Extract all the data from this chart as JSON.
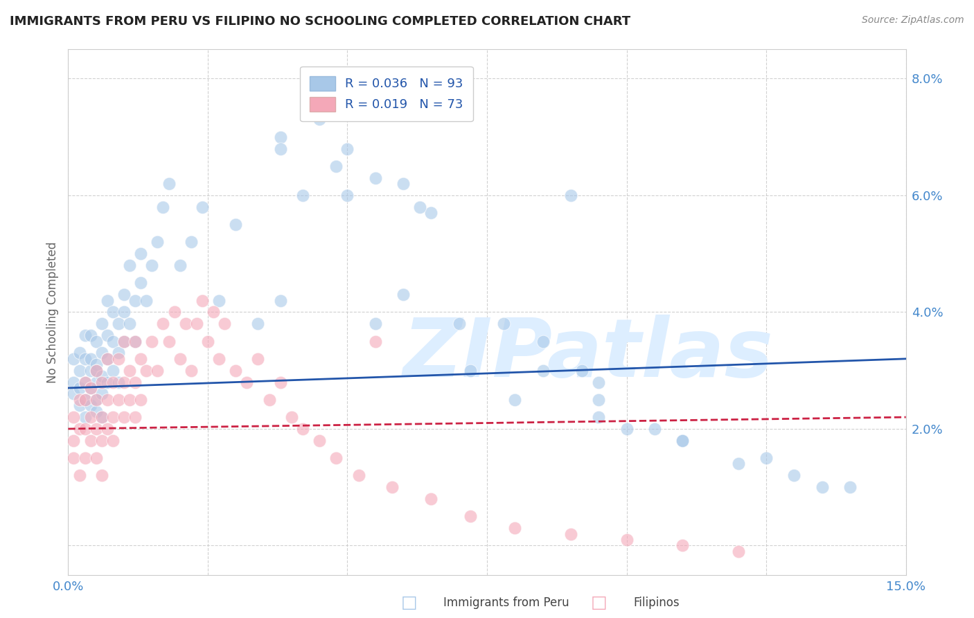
{
  "title": "IMMIGRANTS FROM PERU VS FILIPINO NO SCHOOLING COMPLETED CORRELATION CHART",
  "source_text": "Source: ZipAtlas.com",
  "ylabel": "No Schooling Completed",
  "xlim": [
    0.0,
    0.15
  ],
  "ylim": [
    -0.005,
    0.085
  ],
  "blue_color": "#a8c8e8",
  "pink_color": "#f4a8b8",
  "blue_line_color": "#2255aa",
  "pink_line_color": "#cc2244",
  "watermark": "ZIPatlas",
  "watermark_color": "#ddeeff",
  "background_color": "#ffffff",
  "grid_color": "#cccccc",
  "title_color": "#222222",
  "blue_label": "R = 0.036   N = 93",
  "pink_label": "R = 0.019   N = 73",
  "blue_trend_y0": 0.027,
  "blue_trend_y1": 0.032,
  "pink_trend_y0": 0.02,
  "pink_trend_y1": 0.022,
  "blue_scatter_x": [
    0.001,
    0.001,
    0.001,
    0.002,
    0.002,
    0.002,
    0.002,
    0.003,
    0.003,
    0.003,
    0.003,
    0.003,
    0.004,
    0.004,
    0.004,
    0.004,
    0.004,
    0.005,
    0.005,
    0.005,
    0.005,
    0.005,
    0.005,
    0.006,
    0.006,
    0.006,
    0.006,
    0.006,
    0.007,
    0.007,
    0.007,
    0.007,
    0.008,
    0.008,
    0.008,
    0.009,
    0.009,
    0.009,
    0.01,
    0.01,
    0.01,
    0.011,
    0.011,
    0.012,
    0.012,
    0.013,
    0.013,
    0.014,
    0.015,
    0.016,
    0.017,
    0.018,
    0.02,
    0.022,
    0.024,
    0.027,
    0.03,
    0.034,
    0.038,
    0.042,
    0.048,
    0.055,
    0.06,
    0.065,
    0.072,
    0.08,
    0.09,
    0.095,
    0.1,
    0.11,
    0.125,
    0.13,
    0.14,
    0.038,
    0.045,
    0.05,
    0.055,
    0.063,
    0.07,
    0.078,
    0.085,
    0.092,
    0.095,
    0.105,
    0.038,
    0.05,
    0.06,
    0.07,
    0.085,
    0.095,
    0.11,
    0.12,
    0.135
  ],
  "blue_scatter_y": [
    0.028,
    0.032,
    0.026,
    0.03,
    0.027,
    0.024,
    0.033,
    0.028,
    0.025,
    0.032,
    0.036,
    0.022,
    0.03,
    0.027,
    0.024,
    0.032,
    0.036,
    0.028,
    0.031,
    0.025,
    0.03,
    0.035,
    0.023,
    0.029,
    0.033,
    0.026,
    0.038,
    0.022,
    0.032,
    0.036,
    0.028,
    0.042,
    0.035,
    0.03,
    0.04,
    0.033,
    0.038,
    0.028,
    0.04,
    0.035,
    0.043,
    0.038,
    0.048,
    0.042,
    0.035,
    0.045,
    0.05,
    0.042,
    0.048,
    0.052,
    0.058,
    0.062,
    0.048,
    0.052,
    0.058,
    0.042,
    0.055,
    0.038,
    0.042,
    0.06,
    0.065,
    0.038,
    0.062,
    0.057,
    0.03,
    0.025,
    0.06,
    0.028,
    0.02,
    0.018,
    0.015,
    0.012,
    0.01,
    0.07,
    0.073,
    0.068,
    0.063,
    0.058,
    0.075,
    0.038,
    0.035,
    0.03,
    0.025,
    0.02,
    0.068,
    0.06,
    0.043,
    0.038,
    0.03,
    0.022,
    0.018,
    0.014,
    0.01
  ],
  "pink_scatter_x": [
    0.001,
    0.001,
    0.001,
    0.002,
    0.002,
    0.002,
    0.003,
    0.003,
    0.003,
    0.003,
    0.004,
    0.004,
    0.004,
    0.005,
    0.005,
    0.005,
    0.005,
    0.006,
    0.006,
    0.006,
    0.006,
    0.007,
    0.007,
    0.007,
    0.008,
    0.008,
    0.008,
    0.009,
    0.009,
    0.01,
    0.01,
    0.01,
    0.011,
    0.011,
    0.012,
    0.012,
    0.012,
    0.013,
    0.013,
    0.014,
    0.015,
    0.016,
    0.017,
    0.018,
    0.019,
    0.02,
    0.021,
    0.022,
    0.023,
    0.024,
    0.025,
    0.026,
    0.027,
    0.028,
    0.03,
    0.032,
    0.034,
    0.036,
    0.038,
    0.04,
    0.042,
    0.045,
    0.048,
    0.052,
    0.058,
    0.065,
    0.072,
    0.08,
    0.09,
    0.1,
    0.11,
    0.12,
    0.055
  ],
  "pink_scatter_y": [
    0.018,
    0.022,
    0.015,
    0.02,
    0.025,
    0.012,
    0.02,
    0.025,
    0.015,
    0.028,
    0.022,
    0.018,
    0.027,
    0.02,
    0.025,
    0.015,
    0.03,
    0.022,
    0.018,
    0.028,
    0.012,
    0.025,
    0.02,
    0.032,
    0.022,
    0.028,
    0.018,
    0.025,
    0.032,
    0.028,
    0.022,
    0.035,
    0.03,
    0.025,
    0.028,
    0.035,
    0.022,
    0.032,
    0.025,
    0.03,
    0.035,
    0.03,
    0.038,
    0.035,
    0.04,
    0.032,
    0.038,
    0.03,
    0.038,
    0.042,
    0.035,
    0.04,
    0.032,
    0.038,
    0.03,
    0.028,
    0.032,
    0.025,
    0.028,
    0.022,
    0.02,
    0.018,
    0.015,
    0.012,
    0.01,
    0.008,
    0.005,
    0.003,
    0.002,
    0.001,
    0.0,
    -0.001,
    0.035
  ]
}
